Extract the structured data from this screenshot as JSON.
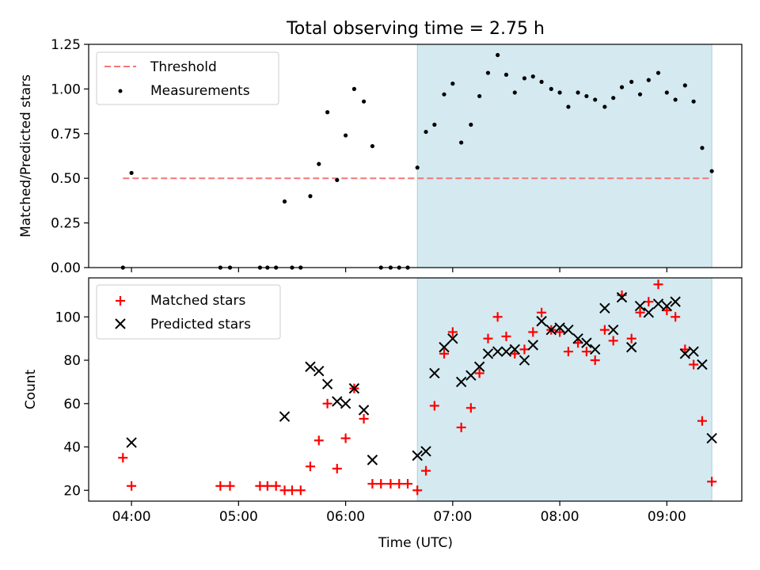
{
  "figure": {
    "title": "Total observing time = 2.75 h",
    "xlabel": "Time (UTC)",
    "x_ticks": [
      {
        "value": 4.0,
        "label": "04:00"
      },
      {
        "value": 5.0,
        "label": "05:00"
      },
      {
        "value": 6.0,
        "label": "06:00"
      },
      {
        "value": 7.0,
        "label": "07:00"
      },
      {
        "value": 8.0,
        "label": "08:00"
      },
      {
        "value": 9.0,
        "label": "09:00"
      }
    ],
    "xlim": [
      3.6,
      9.7
    ],
    "shaded_region": [
      6.67,
      9.42
    ],
    "colors": {
      "shade": "#d4eaf0",
      "shade_edge": "#a9cfd9",
      "threshold": "#f07878",
      "matched": "#ff0000",
      "predicted": "#000000",
      "measurements": "#000000"
    }
  },
  "chart_data": [
    {
      "type": "scatter",
      "ylabel": "Matched/Predicted stars",
      "ylim": [
        0,
        1.25
      ],
      "y_ticks": [
        {
          "value": 0.0,
          "label": "0.00"
        },
        {
          "value": 0.25,
          "label": "0.25"
        },
        {
          "value": 0.5,
          "label": "0.50"
        },
        {
          "value": 0.75,
          "label": "0.75"
        },
        {
          "value": 1.0,
          "label": "1.00"
        },
        {
          "value": 1.25,
          "label": "1.25"
        }
      ],
      "legend": {
        "placement": "top-left",
        "entries": [
          "Threshold",
          "Measurements"
        ]
      },
      "threshold": {
        "name": "Threshold",
        "value": 0.5,
        "x_range": [
          3.92,
          9.42
        ]
      },
      "series": [
        {
          "name": "Measurements",
          "points": [
            [
              3.92,
              0.0
            ],
            [
              4.0,
              0.53
            ],
            [
              4.83,
              0.0
            ],
            [
              4.92,
              0.0
            ],
            [
              5.2,
              0.0
            ],
            [
              5.27,
              0.0
            ],
            [
              5.35,
              0.0
            ],
            [
              5.43,
              0.37
            ],
            [
              5.5,
              0.0
            ],
            [
              5.58,
              0.0
            ],
            [
              5.67,
              0.4
            ],
            [
              5.75,
              0.58
            ],
            [
              5.83,
              0.87
            ],
            [
              5.92,
              0.49
            ],
            [
              6.0,
              0.74
            ],
            [
              6.08,
              1.0
            ],
            [
              6.17,
              0.93
            ],
            [
              6.25,
              0.68
            ],
            [
              6.33,
              0.0
            ],
            [
              6.42,
              0.0
            ],
            [
              6.5,
              0.0
            ],
            [
              6.58,
              0.0
            ],
            [
              6.67,
              0.56
            ],
            [
              6.75,
              0.76
            ],
            [
              6.83,
              0.8
            ],
            [
              6.92,
              0.97
            ],
            [
              7.0,
              1.03
            ],
            [
              7.08,
              0.7
            ],
            [
              7.17,
              0.8
            ],
            [
              7.25,
              0.96
            ],
            [
              7.33,
              1.09
            ],
            [
              7.42,
              1.19
            ],
            [
              7.5,
              1.08
            ],
            [
              7.58,
              0.98
            ],
            [
              7.67,
              1.06
            ],
            [
              7.75,
              1.07
            ],
            [
              7.83,
              1.04
            ],
            [
              7.92,
              1.0
            ],
            [
              8.0,
              0.98
            ],
            [
              8.08,
              0.9
            ],
            [
              8.17,
              0.98
            ],
            [
              8.25,
              0.96
            ],
            [
              8.33,
              0.94
            ],
            [
              8.42,
              0.9
            ],
            [
              8.5,
              0.95
            ],
            [
              8.58,
              1.01
            ],
            [
              8.67,
              1.04
            ],
            [
              8.75,
              0.97
            ],
            [
              8.83,
              1.05
            ],
            [
              8.92,
              1.09
            ],
            [
              9.0,
              0.98
            ],
            [
              9.08,
              0.94
            ],
            [
              9.17,
              1.02
            ],
            [
              9.25,
              0.93
            ],
            [
              9.33,
              0.67
            ],
            [
              9.42,
              0.54
            ]
          ]
        }
      ]
    },
    {
      "type": "scatter",
      "ylabel": "Count",
      "ylim": [
        15,
        118
      ],
      "y_ticks": [
        {
          "value": 20,
          "label": "20"
        },
        {
          "value": 40,
          "label": "40"
        },
        {
          "value": 60,
          "label": "60"
        },
        {
          "value": 80,
          "label": "80"
        },
        {
          "value": 100,
          "label": "100"
        }
      ],
      "legend": {
        "placement": "top-left",
        "entries": [
          "Matched stars",
          "Predicted stars"
        ]
      },
      "series": [
        {
          "name": "Matched stars",
          "marker": "plus",
          "points": [
            [
              3.92,
              35
            ],
            [
              4.0,
              22
            ],
            [
              4.83,
              22
            ],
            [
              4.92,
              22
            ],
            [
              5.2,
              22
            ],
            [
              5.27,
              22
            ],
            [
              5.35,
              22
            ],
            [
              5.43,
              20
            ],
            [
              5.5,
              20
            ],
            [
              5.58,
              20
            ],
            [
              5.67,
              31
            ],
            [
              5.75,
              43
            ],
            [
              5.83,
              60
            ],
            [
              5.92,
              30
            ],
            [
              6.0,
              44
            ],
            [
              6.08,
              67
            ],
            [
              6.17,
              53
            ],
            [
              6.25,
              23
            ],
            [
              6.33,
              23
            ],
            [
              6.42,
              23
            ],
            [
              6.5,
              23
            ],
            [
              6.58,
              23
            ],
            [
              6.67,
              20
            ],
            [
              6.75,
              29
            ],
            [
              6.83,
              59
            ],
            [
              6.92,
              83
            ],
            [
              7.0,
              93
            ],
            [
              7.08,
              49
            ],
            [
              7.17,
              58
            ],
            [
              7.25,
              74
            ],
            [
              7.33,
              90
            ],
            [
              7.42,
              100
            ],
            [
              7.5,
              91
            ],
            [
              7.58,
              83
            ],
            [
              7.67,
              85
            ],
            [
              7.75,
              93
            ],
            [
              7.83,
              102
            ],
            [
              7.92,
              94
            ],
            [
              8.0,
              93
            ],
            [
              8.08,
              84
            ],
            [
              8.17,
              88
            ],
            [
              8.25,
              84
            ],
            [
              8.33,
              80
            ],
            [
              8.42,
              94
            ],
            [
              8.5,
              89
            ],
            [
              8.58,
              110
            ],
            [
              8.67,
              90
            ],
            [
              8.75,
              102
            ],
            [
              8.83,
              107
            ],
            [
              8.92,
              115
            ],
            [
              9.0,
              103
            ],
            [
              9.08,
              100
            ],
            [
              9.17,
              85
            ],
            [
              9.25,
              78
            ],
            [
              9.33,
              52
            ],
            [
              9.42,
              24
            ]
          ]
        },
        {
          "name": "Predicted stars",
          "marker": "x",
          "points": [
            [
              4.0,
              42
            ],
            [
              5.43,
              54
            ],
            [
              5.67,
              77
            ],
            [
              5.75,
              75
            ],
            [
              5.83,
              69
            ],
            [
              5.92,
              61
            ],
            [
              6.0,
              60
            ],
            [
              6.08,
              67
            ],
            [
              6.17,
              57
            ],
            [
              6.25,
              34
            ],
            [
              6.67,
              36
            ],
            [
              6.75,
              38
            ],
            [
              6.83,
              74
            ],
            [
              6.92,
              86
            ],
            [
              7.0,
              90
            ],
            [
              7.08,
              70
            ],
            [
              7.17,
              73
            ],
            [
              7.25,
              77
            ],
            [
              7.33,
              83
            ],
            [
              7.42,
              84
            ],
            [
              7.5,
              84
            ],
            [
              7.58,
              85
            ],
            [
              7.67,
              80
            ],
            [
              7.75,
              87
            ],
            [
              7.83,
              98
            ],
            [
              7.92,
              94
            ],
            [
              8.0,
              95
            ],
            [
              8.08,
              94
            ],
            [
              8.17,
              90
            ],
            [
              8.25,
              88
            ],
            [
              8.33,
              85
            ],
            [
              8.42,
              104
            ],
            [
              8.5,
              94
            ],
            [
              8.58,
              109
            ],
            [
              8.67,
              86
            ],
            [
              8.75,
              105
            ],
            [
              8.83,
              102
            ],
            [
              8.92,
              106
            ],
            [
              9.0,
              105
            ],
            [
              9.08,
              107
            ],
            [
              9.17,
              83
            ],
            [
              9.25,
              84
            ],
            [
              9.33,
              78
            ],
            [
              9.42,
              44
            ]
          ]
        }
      ]
    }
  ]
}
